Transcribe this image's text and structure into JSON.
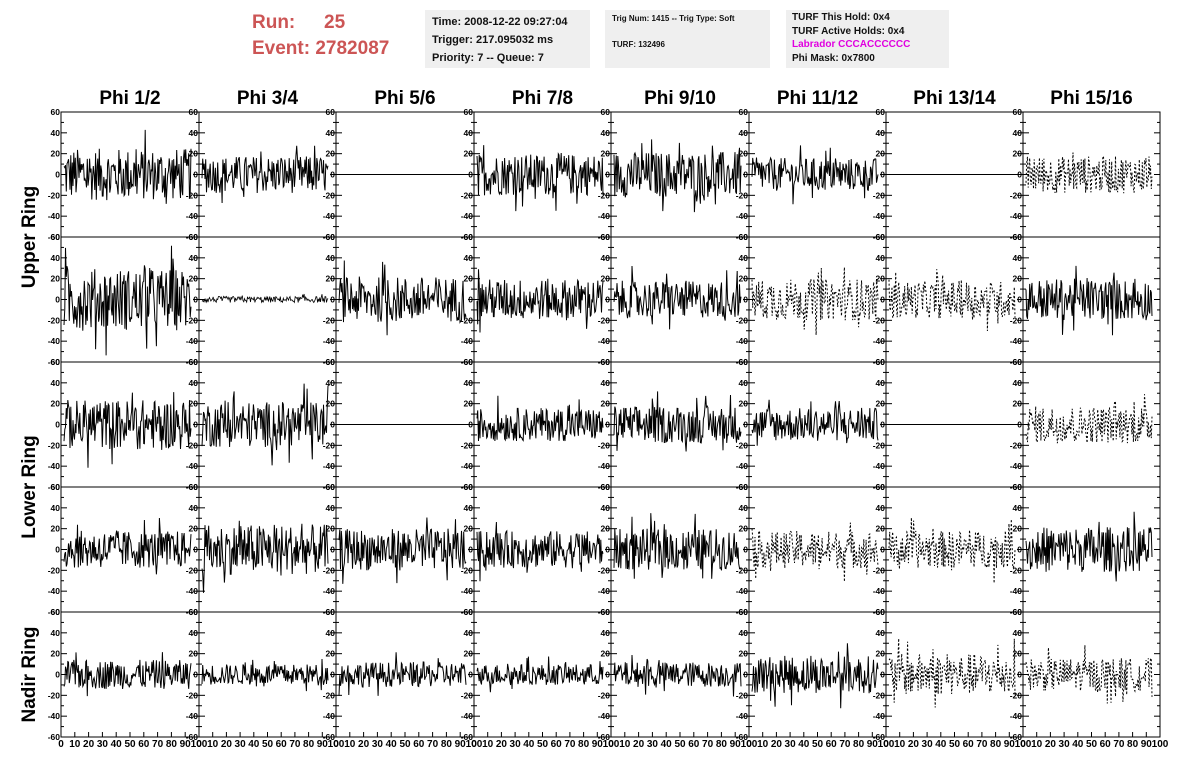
{
  "header": {
    "run_label": "Run:",
    "run_value": "25",
    "event_label": "Event:",
    "event_value": "2782087"
  },
  "info_time": {
    "time": "Time: 2008-12-22 09:27:04",
    "trigger": "Trigger: 217.095032 ms",
    "priority": "Priority: 7 -- Queue: 7"
  },
  "info_trig": {
    "trig": "Trig Num: 1415 -- Trig Type: Soft",
    "turf": "TURF: 132496"
  },
  "info_turf": {
    "this_hold": "TURF This Hold: 0x4",
    "active_holds": "TURF Active Holds: 0x4",
    "labrador": "Labrador CCCACCCCCC",
    "phi_mask": "Phi Mask: 0x7800"
  },
  "colors": {
    "run_text": "#cc5555",
    "labrador_text": "#e000e0",
    "trace": "#000000",
    "info_bg": "#efefef"
  },
  "chart_data": {
    "type": "line",
    "columns": [
      "Phi 1/2",
      "Phi 3/4",
      "Phi 5/6",
      "Phi 7/8",
      "Phi 9/10",
      "Phi 11/12",
      "Phi 13/14",
      "Phi 15/16"
    ],
    "row_groups": [
      {
        "label": "Upper Ring",
        "rows": [
          0,
          1
        ]
      },
      {
        "label": "Lower Ring",
        "rows": [
          2,
          3
        ]
      },
      {
        "label": "Nadir Ring",
        "rows": [
          4
        ]
      }
    ],
    "ylim": [
      -60,
      60
    ],
    "y_ticks": [
      -60,
      -40,
      -20,
      0,
      20,
      40,
      60
    ],
    "xlim": [
      0,
      100
    ],
    "x_tick_labels": [
      "0",
      "10",
      "20",
      "30",
      "40",
      "50",
      "60",
      "70",
      "80",
      "90",
      "100"
    ],
    "panels": [
      [
        "solid",
        "solid",
        "flat",
        "solid",
        "solid",
        "solid",
        "flat",
        "dashed"
      ],
      [
        "solid",
        "quiet",
        "solid",
        "solid",
        "solid",
        "dashed",
        "dashed",
        "solid"
      ],
      [
        "solid",
        "solid",
        "flat",
        "solid",
        "solid",
        "solid",
        "flat",
        "dashed"
      ],
      [
        "solid",
        "solid",
        "solid",
        "solid",
        "solid",
        "dashed",
        "dashed",
        "solid"
      ],
      [
        "solid",
        "solid",
        "solid",
        "solid",
        "solid",
        "solid",
        "dashed",
        "dashed"
      ]
    ],
    "amplitudes": [
      [
        25,
        18,
        0,
        20,
        22,
        16,
        0,
        18
      ],
      [
        30,
        3,
        22,
        20,
        18,
        20,
        18,
        20
      ],
      [
        24,
        22,
        0,
        16,
        18,
        16,
        0,
        18
      ],
      [
        18,
        24,
        20,
        18,
        20,
        18,
        18,
        22
      ],
      [
        14,
        10,
        12,
        10,
        12,
        18,
        20,
        16
      ]
    ]
  }
}
